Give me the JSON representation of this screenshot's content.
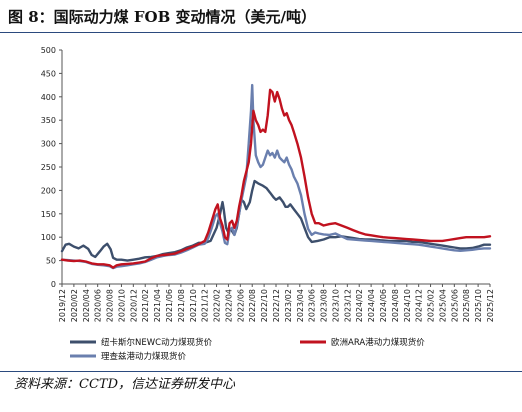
{
  "figure": {
    "title": "图 8：国际动力煤 FOB 变动情况（美元/吨）",
    "source": "资料来源：CCTD，信达证券研发中心"
  },
  "chart_data": {
    "type": "line",
    "ylim": [
      0,
      500
    ],
    "yticks": [
      0,
      50,
      100,
      150,
      200,
      250,
      300,
      350,
      400,
      450,
      500
    ],
    "x_tick_labels": [
      "2019/12",
      "2020/02",
      "2020/04",
      "2020/06",
      "2020/08",
      "2020/10",
      "2020/12",
      "2021/02",
      "2021/04",
      "2021/06",
      "2021/08",
      "2021/10",
      "2021/12",
      "2022/02",
      "2022/04",
      "2022/06",
      "2022/08",
      "2022/10",
      "2022/12",
      "2023/02",
      "2023/04",
      "2023/06",
      "2023/08",
      "2023/10",
      "2023/12",
      "2024/02",
      "2024/04",
      "2024/06",
      "2024/08",
      "2024/10",
      "2024/12",
      "2025/02",
      "2025/04",
      "2025/06",
      "2025/08",
      "2025/10",
      "2025/12"
    ],
    "x_index_range": [
      0,
      36
    ],
    "grid": false,
    "legend_position": "bottom",
    "series": [
      {
        "name": "纽卡斯尔NEWC动力煤现货价",
        "color": "#3d4f6c",
        "points": [
          [
            0,
            70
          ],
          [
            0.3,
            84
          ],
          [
            0.6,
            86
          ],
          [
            1,
            80
          ],
          [
            1.4,
            76
          ],
          [
            1.8,
            82
          ],
          [
            2.2,
            75
          ],
          [
            2.5,
            62
          ],
          [
            2.8,
            58
          ],
          [
            3.2,
            70
          ],
          [
            3.5,
            80
          ],
          [
            3.8,
            86
          ],
          [
            4.1,
            74
          ],
          [
            4.3,
            56
          ],
          [
            4.6,
            52
          ],
          [
            5,
            52
          ],
          [
            5.5,
            50
          ],
          [
            6,
            52
          ],
          [
            6.5,
            54
          ],
          [
            7,
            57
          ],
          [
            7.5,
            58
          ],
          [
            8,
            60
          ],
          [
            8.5,
            64
          ],
          [
            9,
            66
          ],
          [
            9.5,
            68
          ],
          [
            10,
            72
          ],
          [
            10.5,
            78
          ],
          [
            11,
            82
          ],
          [
            11.5,
            88
          ],
          [
            12,
            88
          ],
          [
            12.5,
            92
          ],
          [
            13,
            120
          ],
          [
            13.3,
            150
          ],
          [
            13.5,
            175
          ],
          [
            13.6,
            160
          ],
          [
            13.8,
            120
          ],
          [
            14,
            110
          ],
          [
            14.2,
            118
          ],
          [
            14.3,
            113
          ],
          [
            14.5,
            105
          ],
          [
            14.7,
            120
          ],
          [
            14.9,
            150
          ],
          [
            15.1,
            180
          ],
          [
            15.3,
            175
          ],
          [
            15.5,
            160
          ],
          [
            15.8,
            175
          ],
          [
            16,
            200
          ],
          [
            16.2,
            220
          ],
          [
            16.5,
            215
          ],
          [
            16.9,
            210
          ],
          [
            17.2,
            205
          ],
          [
            17.5,
            195
          ],
          [
            17.8,
            185
          ],
          [
            18,
            180
          ],
          [
            18.3,
            185
          ],
          [
            18.6,
            175
          ],
          [
            18.8,
            165
          ],
          [
            19,
            165
          ],
          [
            19.2,
            170
          ],
          [
            19.5,
            160
          ],
          [
            19.8,
            150
          ],
          [
            20.1,
            140
          ],
          [
            20.4,
            120
          ],
          [
            20.7,
            100
          ],
          [
            21,
            90
          ],
          [
            21.5,
            92
          ],
          [
            22,
            95
          ],
          [
            22.5,
            100
          ],
          [
            23,
            100
          ],
          [
            23.5,
            102
          ],
          [
            24,
            100
          ],
          [
            24.5,
            98
          ],
          [
            25,
            96
          ],
          [
            25.5,
            95
          ],
          [
            26,
            95
          ],
          [
            26.5,
            94
          ],
          [
            27,
            93
          ],
          [
            27.5,
            92
          ],
          [
            28,
            92
          ],
          [
            28.5,
            92
          ],
          [
            29,
            92
          ],
          [
            29.5,
            90
          ],
          [
            30,
            90
          ],
          [
            30.5,
            88
          ],
          [
            31,
            86
          ],
          [
            31.5,
            84
          ],
          [
            32,
            82
          ],
          [
            32.5,
            80
          ],
          [
            33,
            78
          ],
          [
            33.5,
            76
          ],
          [
            34,
            76
          ],
          [
            34.5,
            77
          ],
          [
            35,
            80
          ],
          [
            35.5,
            84
          ],
          [
            36,
            84
          ]
        ]
      },
      {
        "name": "欧洲ARA港动力煤现货价",
        "color": "#c1121f",
        "points": [
          [
            0,
            52
          ],
          [
            0.5,
            50
          ],
          [
            1,
            49
          ],
          [
            1.5,
            50
          ],
          [
            2,
            48
          ],
          [
            2.5,
            44
          ],
          [
            3,
            42
          ],
          [
            3.5,
            42
          ],
          [
            4,
            40
          ],
          [
            4.3,
            35
          ],
          [
            4.6,
            40
          ],
          [
            5,
            42
          ],
          [
            5.5,
            43
          ],
          [
            6,
            44
          ],
          [
            6.5,
            46
          ],
          [
            7,
            48
          ],
          [
            7.5,
            55
          ],
          [
            8,
            60
          ],
          [
            8.5,
            62
          ],
          [
            9,
            63
          ],
          [
            9.5,
            65
          ],
          [
            10,
            70
          ],
          [
            10.5,
            75
          ],
          [
            11,
            80
          ],
          [
            11.5,
            85
          ],
          [
            12,
            92
          ],
          [
            12.3,
            110
          ],
          [
            12.6,
            135
          ],
          [
            12.9,
            160
          ],
          [
            13.1,
            170
          ],
          [
            13.3,
            140
          ],
          [
            13.5,
            125
          ],
          [
            13.7,
            100
          ],
          [
            13.9,
            95
          ],
          [
            14.1,
            130
          ],
          [
            14.3,
            135
          ],
          [
            14.5,
            120
          ],
          [
            14.7,
            135
          ],
          [
            14.9,
            165
          ],
          [
            15.1,
            190
          ],
          [
            15.3,
            220
          ],
          [
            15.5,
            240
          ],
          [
            15.7,
            260
          ],
          [
            15.9,
            300
          ],
          [
            16.1,
            370
          ],
          [
            16.3,
            350
          ],
          [
            16.5,
            340
          ],
          [
            16.7,
            325
          ],
          [
            16.9,
            330
          ],
          [
            17.1,
            325
          ],
          [
            17.3,
            360
          ],
          [
            17.5,
            415
          ],
          [
            17.7,
            410
          ],
          [
            17.9,
            390
          ],
          [
            18.1,
            410
          ],
          [
            18.3,
            395
          ],
          [
            18.5,
            375
          ],
          [
            18.7,
            360
          ],
          [
            18.9,
            365
          ],
          [
            19.1,
            350
          ],
          [
            19.3,
            340
          ],
          [
            19.5,
            325
          ],
          [
            19.8,
            300
          ],
          [
            20.1,
            270
          ],
          [
            20.4,
            230
          ],
          [
            20.7,
            185
          ],
          [
            21,
            150
          ],
          [
            21.3,
            130
          ],
          [
            21.6,
            130
          ],
          [
            22,
            125
          ],
          [
            22.5,
            128
          ],
          [
            23,
            130
          ],
          [
            23.5,
            125
          ],
          [
            24,
            120
          ],
          [
            24.5,
            115
          ],
          [
            25,
            110
          ],
          [
            25.5,
            106
          ],
          [
            26,
            104
          ],
          [
            26.5,
            102
          ],
          [
            27,
            100
          ],
          [
            27.5,
            99
          ],
          [
            28,
            98
          ],
          [
            28.5,
            97
          ],
          [
            29,
            96
          ],
          [
            29.5,
            95
          ],
          [
            30,
            94
          ],
          [
            30.5,
            93
          ],
          [
            31,
            92
          ],
          [
            31.5,
            92
          ],
          [
            32,
            92
          ],
          [
            32.5,
            94
          ],
          [
            33,
            96
          ],
          [
            33.5,
            98
          ],
          [
            34,
            100
          ],
          [
            34.5,
            100
          ],
          [
            35,
            100
          ],
          [
            35.5,
            100
          ],
          [
            36,
            102
          ]
        ]
      },
      {
        "name": "理查兹港动力煤现货价",
        "color": "#6a7fae",
        "points": [
          [
            0,
            52
          ],
          [
            0.5,
            51
          ],
          [
            1,
            50
          ],
          [
            1.5,
            49
          ],
          [
            2,
            47
          ],
          [
            2.5,
            43
          ],
          [
            3,
            41
          ],
          [
            3.5,
            40
          ],
          [
            4,
            38
          ],
          [
            4.3,
            34
          ],
          [
            4.6,
            37
          ],
          [
            5,
            38
          ],
          [
            5.5,
            40
          ],
          [
            6,
            42
          ],
          [
            6.5,
            44
          ],
          [
            7,
            47
          ],
          [
            7.5,
            52
          ],
          [
            8,
            57
          ],
          [
            8.5,
            60
          ],
          [
            9,
            62
          ],
          [
            9.5,
            63
          ],
          [
            10,
            67
          ],
          [
            10.5,
            72
          ],
          [
            11,
            78
          ],
          [
            11.5,
            84
          ],
          [
            12,
            86
          ],
          [
            12.3,
            98
          ],
          [
            12.6,
            120
          ],
          [
            12.9,
            145
          ],
          [
            13.1,
            150
          ],
          [
            13.3,
            130
          ],
          [
            13.5,
            112
          ],
          [
            13.7,
            88
          ],
          [
            13.9,
            85
          ],
          [
            14.1,
            115
          ],
          [
            14.3,
            120
          ],
          [
            14.5,
            105
          ],
          [
            14.7,
            125
          ],
          [
            14.9,
            150
          ],
          [
            15.1,
            180
          ],
          [
            15.3,
            205
          ],
          [
            15.5,
            230
          ],
          [
            15.7,
            300
          ],
          [
            15.9,
            370
          ],
          [
            16,
            425
          ],
          [
            16.1,
            350
          ],
          [
            16.3,
            275
          ],
          [
            16.5,
            260
          ],
          [
            16.7,
            250
          ],
          [
            16.9,
            255
          ],
          [
            17.1,
            270
          ],
          [
            17.3,
            285
          ],
          [
            17.5,
            275
          ],
          [
            17.7,
            280
          ],
          [
            17.9,
            270
          ],
          [
            18.1,
            285
          ],
          [
            18.3,
            270
          ],
          [
            18.5,
            265
          ],
          [
            18.7,
            260
          ],
          [
            18.9,
            270
          ],
          [
            19.1,
            255
          ],
          [
            19.3,
            245
          ],
          [
            19.5,
            230
          ],
          [
            19.8,
            215
          ],
          [
            20.1,
            190
          ],
          [
            20.4,
            150
          ],
          [
            20.7,
            118
          ],
          [
            21,
            105
          ],
          [
            21.3,
            110
          ],
          [
            21.6,
            108
          ],
          [
            22,
            106
          ],
          [
            22.5,
            105
          ],
          [
            23,
            108
          ],
          [
            23.5,
            102
          ],
          [
            24,
            96
          ],
          [
            24.5,
            95
          ],
          [
            25,
            94
          ],
          [
            25.5,
            93
          ],
          [
            26,
            92
          ],
          [
            26.5,
            91
          ],
          [
            27,
            90
          ],
          [
            27.5,
            89
          ],
          [
            28,
            88
          ],
          [
            28.5,
            87
          ],
          [
            29,
            86
          ],
          [
            29.5,
            85
          ],
          [
            30,
            84
          ],
          [
            30.5,
            82
          ],
          [
            31,
            80
          ],
          [
            31.5,
            78
          ],
          [
            32,
            76
          ],
          [
            32.5,
            74
          ],
          [
            33,
            72
          ],
          [
            33.5,
            71
          ],
          [
            34,
            72
          ],
          [
            34.5,
            73
          ],
          [
            35,
            75
          ],
          [
            35.5,
            76
          ],
          [
            36,
            76
          ]
        ]
      }
    ]
  }
}
